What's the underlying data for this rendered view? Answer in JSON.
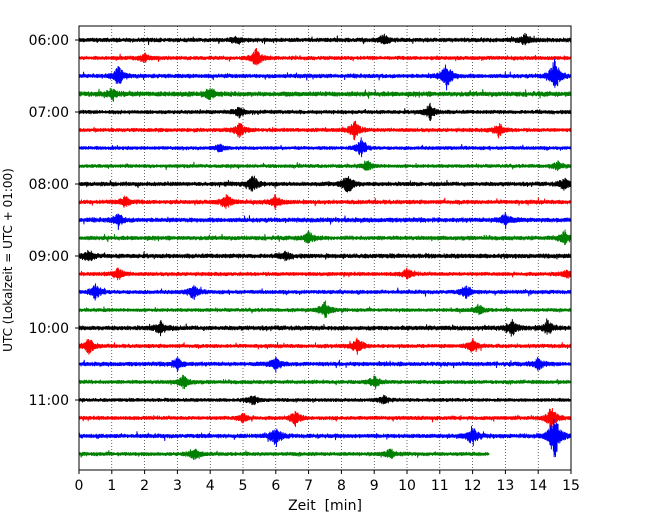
{
  "chart_data": {
    "type": "line",
    "title": "",
    "xlabel": "Zeit  [min]",
    "ylabel": "UTC (Lokalzeit = UTC + 01:00)",
    "xlim": [
      0,
      15
    ],
    "x_ticks": [
      0,
      1,
      2,
      3,
      4,
      5,
      6,
      7,
      8,
      9,
      10,
      11,
      12,
      13,
      14,
      15
    ],
    "x_tick_labels": [
      "0",
      "1",
      "2",
      "3",
      "4",
      "5",
      "6",
      "7",
      "8",
      "9",
      "10",
      "11",
      "12",
      "13",
      "14",
      "15"
    ],
    "y_ticks": [
      "06:00",
      "07:00",
      "08:00",
      "09:00",
      "10:00",
      "11:00"
    ],
    "grid": "vertical dotted at each minute",
    "series_colors": [
      "#000000",
      "#ff0000",
      "#0000ff",
      "#008000"
    ],
    "trace_minutes": 15,
    "traces": [
      {
        "start": "06:00",
        "color": "#000000",
        "end_min": 15,
        "amplitude": 2.2,
        "events": [
          {
            "t": 4.8,
            "a": 3
          },
          {
            "t": 9.3,
            "a": 5
          },
          {
            "t": 13.6,
            "a": 6
          }
        ]
      },
      {
        "start": "06:15",
        "color": "#ff0000",
        "end_min": 15,
        "amplitude": 2.0,
        "events": [
          {
            "t": 5.4,
            "a": 9
          },
          {
            "t": 2.0,
            "a": 4
          }
        ]
      },
      {
        "start": "06:30",
        "color": "#0000ff",
        "end_min": 15,
        "amplitude": 2.2,
        "events": [
          {
            "t": 1.2,
            "a": 10
          },
          {
            "t": 11.2,
            "a": 14
          },
          {
            "t": 14.5,
            "a": 17
          }
        ]
      },
      {
        "start": "06:45",
        "color": "#008000",
        "end_min": 15,
        "amplitude": 2.6,
        "events": [
          {
            "t": 4.0,
            "a": 6
          },
          {
            "t": 1.0,
            "a": 5
          }
        ]
      },
      {
        "start": "07:00",
        "color": "#000000",
        "end_min": 15,
        "amplitude": 2.0,
        "events": [
          {
            "t": 4.9,
            "a": 5
          },
          {
            "t": 10.7,
            "a": 8
          }
        ]
      },
      {
        "start": "07:15",
        "color": "#ff0000",
        "end_min": 15,
        "amplitude": 2.0,
        "events": [
          {
            "t": 4.9,
            "a": 8
          },
          {
            "t": 8.4,
            "a": 10
          },
          {
            "t": 12.8,
            "a": 7
          }
        ]
      },
      {
        "start": "07:30",
        "color": "#0000ff",
        "end_min": 15,
        "amplitude": 1.8,
        "events": [
          {
            "t": 8.6,
            "a": 9
          },
          {
            "t": 4.3,
            "a": 4
          }
        ]
      },
      {
        "start": "07:45",
        "color": "#008000",
        "end_min": 15,
        "amplitude": 1.8,
        "events": [
          {
            "t": 8.8,
            "a": 5
          },
          {
            "t": 14.6,
            "a": 4
          }
        ]
      },
      {
        "start": "08:00",
        "color": "#000000",
        "end_min": 15,
        "amplitude": 2.2,
        "events": [
          {
            "t": 5.3,
            "a": 9
          },
          {
            "t": 8.2,
            "a": 11
          },
          {
            "t": 14.8,
            "a": 6
          }
        ]
      },
      {
        "start": "08:15",
        "color": "#ff0000",
        "end_min": 15,
        "amplitude": 2.2,
        "events": [
          {
            "t": 1.4,
            "a": 6
          },
          {
            "t": 4.5,
            "a": 7
          },
          {
            "t": 6.0,
            "a": 6
          }
        ]
      },
      {
        "start": "08:30",
        "color": "#0000ff",
        "end_min": 15,
        "amplitude": 2.4,
        "events": [
          {
            "t": 1.2,
            "a": 6
          },
          {
            "t": 13.0,
            "a": 7
          }
        ]
      },
      {
        "start": "08:45",
        "color": "#008000",
        "end_min": 15,
        "amplitude": 2.2,
        "events": [
          {
            "t": 7.0,
            "a": 6
          },
          {
            "t": 14.8,
            "a": 7
          }
        ]
      },
      {
        "start": "09:00",
        "color": "#000000",
        "end_min": 15,
        "amplitude": 2.4,
        "events": [
          {
            "t": 0.3,
            "a": 6
          },
          {
            "t": 6.3,
            "a": 4
          }
        ]
      },
      {
        "start": "09:15",
        "color": "#ff0000",
        "end_min": 15,
        "amplitude": 2.0,
        "events": [
          {
            "t": 1.2,
            "a": 6
          },
          {
            "t": 10.0,
            "a": 5
          },
          {
            "t": 14.9,
            "a": 4
          }
        ]
      },
      {
        "start": "09:30",
        "color": "#0000ff",
        "end_min": 15,
        "amplitude": 2.0,
        "events": [
          {
            "t": 0.5,
            "a": 8
          },
          {
            "t": 3.5,
            "a": 7
          },
          {
            "t": 11.8,
            "a": 6
          }
        ]
      },
      {
        "start": "09:45",
        "color": "#008000",
        "end_min": 15,
        "amplitude": 1.8,
        "events": [
          {
            "t": 7.5,
            "a": 9
          },
          {
            "t": 12.2,
            "a": 5
          }
        ]
      },
      {
        "start": "10:00",
        "color": "#000000",
        "end_min": 15,
        "amplitude": 2.4,
        "events": [
          {
            "t": 2.5,
            "a": 7
          },
          {
            "t": 13.2,
            "a": 8
          },
          {
            "t": 14.3,
            "a": 7
          }
        ]
      },
      {
        "start": "10:15",
        "color": "#ff0000",
        "end_min": 15,
        "amplitude": 2.0,
        "events": [
          {
            "t": 0.3,
            "a": 8
          },
          {
            "t": 8.5,
            "a": 9
          },
          {
            "t": 12.0,
            "a": 7
          }
        ]
      },
      {
        "start": "10:30",
        "color": "#0000ff",
        "end_min": 15,
        "amplitude": 2.2,
        "events": [
          {
            "t": 3.0,
            "a": 6
          },
          {
            "t": 6.0,
            "a": 7
          },
          {
            "t": 14.0,
            "a": 6
          }
        ]
      },
      {
        "start": "10:45",
        "color": "#008000",
        "end_min": 15,
        "amplitude": 2.0,
        "events": [
          {
            "t": 3.2,
            "a": 7
          },
          {
            "t": 9.0,
            "a": 6
          }
        ]
      },
      {
        "start": "11:00",
        "color": "#000000",
        "end_min": 15,
        "amplitude": 1.8,
        "events": [
          {
            "t": 5.3,
            "a": 5
          },
          {
            "t": 9.3,
            "a": 4
          }
        ]
      },
      {
        "start": "11:15",
        "color": "#ff0000",
        "end_min": 15,
        "amplitude": 2.0,
        "events": [
          {
            "t": 5.0,
            "a": 4
          },
          {
            "t": 6.6,
            "a": 7
          },
          {
            "t": 14.4,
            "a": 12
          }
        ]
      },
      {
        "start": "11:30",
        "color": "#0000ff",
        "end_min": 15,
        "amplitude": 2.2,
        "events": [
          {
            "t": 6.0,
            "a": 10
          },
          {
            "t": 12.0,
            "a": 10
          },
          {
            "t": 14.5,
            "a": 26
          }
        ]
      },
      {
        "start": "11:45",
        "color": "#008000",
        "end_min": 12.5,
        "amplitude": 2.0,
        "events": [
          {
            "t": 3.5,
            "a": 5
          },
          {
            "t": 9.5,
            "a": 5
          }
        ]
      }
    ]
  }
}
